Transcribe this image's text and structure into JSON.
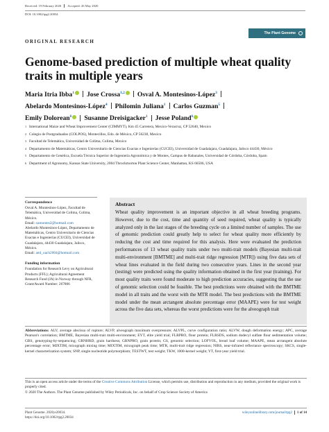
{
  "header": {
    "received": "Received: 19 February 2020",
    "accepted": "Accepted: 26 May 2020",
    "doi": "DOI: 10.1002/tpg2.20034",
    "journal_badge": "The Plant Genome"
  },
  "article_type": "ORIGINAL RESEARCH",
  "title": "Genome-based prediction of multiple wheat quality traits in multiple years",
  "authors": {
    "row1": [
      {
        "name": "Maria Itria Ibba",
        "sup": "1"
      },
      {
        "name": "Jose Crossa",
        "sup": "1,2"
      },
      {
        "name": "Osval A. Montesinos-López",
        "sup": "3"
      }
    ],
    "row2": [
      {
        "name": "Abelardo Montesinos-López",
        "sup": "4"
      },
      {
        "name": "Philomin Juliana",
        "sup": "1"
      },
      {
        "name": "Carlos Guzman",
        "sup": "5"
      }
    ],
    "row3": [
      {
        "name": "Emily Dolorean",
        "sup": "6"
      },
      {
        "name": "Susanne Dreisigacker",
        "sup": "1"
      },
      {
        "name": "Jesse Poland",
        "sup": "6"
      }
    ]
  },
  "affiliations": [
    {
      "n": "1",
      "text": "International Maize and Wheat Improvement Center (CIMMYT), Km 45 Carretera, Mexico-Veracruz, CP 52640, Mexico"
    },
    {
      "n": "2",
      "text": "Colegio de Postgraduados (COLPOS), Montecillos, Edo. de México, CP 56230, Mexico"
    },
    {
      "n": "3",
      "text": "Facultad de Telemática, Universidad de Colima, Colima, Mexico"
    },
    {
      "n": "4",
      "text": "Departamento de Matemáticas, Centro Universitario de Ciencias Exactas e Ingenierías (CUCEI), Universidad de Guadalajara, Guadalajara, Jalisco 44430, México"
    },
    {
      "n": "5",
      "text": "Departamento de Genética, Escuela Técnica Superior de Ingeniería Agronómica y de Montes, Campus de Rabanales, Universidad de Córdoba, Córdoba, Spain"
    },
    {
      "n": "6",
      "text": "Department of Agronomy, Kansas State University, 2004 Throckmorton Plant Science Center, Manhattan, KS 66506, USA"
    }
  ],
  "correspondence": {
    "heading": "Correspondence",
    "text1": "Osval A. Montesinos-López, Facultad de Telemática, Universidad de Colima, Colima, México.",
    "email_label1": "Email: ",
    "email1": "oamontes2@hotmail.com",
    "text2": "Abelardo Montesinos-López, Departamento de Matemáticas, Centro Universitario de Ciencias Exactas e Ingenierías (CUCEI), Universidad de Guadalajara, 44430 Guadalajara, Jalisco, México.",
    "email_label2": "Email: ",
    "email2": "aml_uach2004@hotmail.com"
  },
  "funding": {
    "heading": "Funding information",
    "text": "Foundation for Research Levy on Agricultural Products (FFL); Agricultural Agreement Research Fund (JA) in Norway through NFR, Grant/Award Number: 267806"
  },
  "abstract": {
    "heading": "Abstract",
    "text": "Wheat quality improvement is an important objective in all wheat breeding programs. However, due to the cost, time and quantity of seed required, wheat quality is typically analyzed only in the last stages of the breeding cycle on a limited number of samples. The use of genomic prediction could greatly help to select for wheat quality more efficiently by reducing the cost and time required for this analysis. Here were evaluated the prediction performances of 13 wheat quality traits under two multi-trait models (Bayesian multi-trait multi-environment [BMTME] and multi-trait ridge regression [MTR]) using five data sets of wheat lines evaluated in the field during two consecutive years. Lines in the second year (testing) were predicted using the quality information obtained in the first year (training). For most quality traits were found moderate to high prediction accuracies, suggesting that the use of genomic selection could be feasible. The best predictions were obtained with the BMTME model in all traits and the worst with the MTR model. The best predictions with the BMTME model under the mean arctangent absolute percentage error (MAAPE) were for test weight across the five data sets, whereas the worst predictions were for the alveograph trait"
  },
  "abbreviations": {
    "heading": "Abbreviations:",
    "text": " ALV, average abscissa of rupture; ALVP, alveograph maximum overpressure; ALVPL, curve configuration ratio; ALVW, dough deformation energy; APC, average Pearson's correlation; BMTME, Bayesian multi-trait multi-environment; EYT, elite yield trial; FLRPRO, flour protein; FLRSDS, sodium dodecyl sulfate flour sedimentation volume; GBS, genotyping-by-sequencing; GRNHRD, grain hardness; GRNPRO, grain protein; GS, genomic selection; LOFVOL, bread loaf volume; MAAPE, mean arctangent absolute percentage error; MIXTIM, mixograph mixing time; MIXTIM, mixograph peak time; MTR, multi-trait ridge regression; NIRS, near-infrared reflectance spectroscopy; SKCS, single-kernel characterization system; SNP, single nucleotide polymorphism; TESTWT, test weight; TKW, 1000-kernel weight; YT, first-year yield trial."
  },
  "license": {
    "text1": "This is an open access article under the terms of the ",
    "link": "Creative Commons Attribution",
    "text2": " License, which permits use, distribution and reproduction in any medium, provided the original work is properly cited.",
    "copyright": "© 2020 The Authors. The Plant Genome published by Wiley Periodicals, Inc. on behalf of Crop Science Society of America"
  },
  "footer": {
    "journal": "Plant Genome. 2020;e20034.",
    "doi": "https://doi.org/10.1002/tpg2.20034",
    "url": "wileyonlinelibrary.com/journal/tpg2",
    "pages": "1 of 14"
  }
}
